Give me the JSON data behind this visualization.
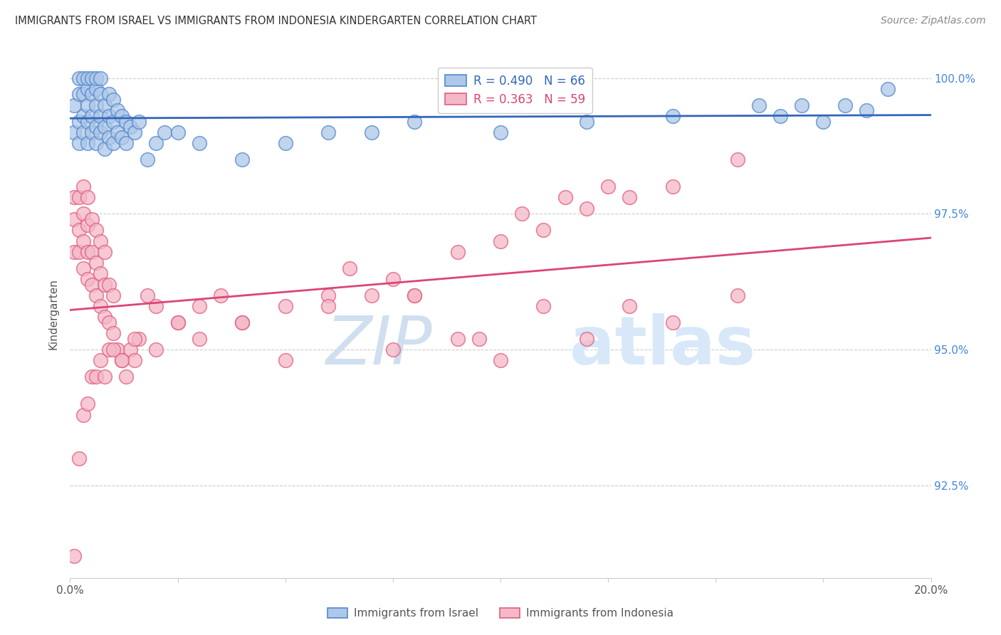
{
  "title": "IMMIGRANTS FROM ISRAEL VS IMMIGRANTS FROM INDONESIA KINDERGARTEN CORRELATION CHART",
  "source": "Source: ZipAtlas.com",
  "ylabel": "Kindergarten",
  "y_tick_labels": [
    "92.5%",
    "95.0%",
    "97.5%",
    "100.0%"
  ],
  "y_tick_values": [
    0.925,
    0.95,
    0.975,
    1.0
  ],
  "xlim": [
    0.0,
    0.2
  ],
  "ylim": [
    0.908,
    1.005
  ],
  "israel_color": "#adc8e8",
  "indonesia_color": "#f4b8c8",
  "israel_edge_color": "#5588cc",
  "indonesia_edge_color": "#e06080",
  "israel_line_color": "#3366bb",
  "indonesia_line_color": "#dd4477",
  "background_color": "#ffffff",
  "israel_legend": "R = 0.490   N = 66",
  "indonesia_legend": "R = 0.363   N = 59",
  "watermark_zip": "ZIP",
  "watermark_atlas": "atlas",
  "israel_x": [
    0.001,
    0.001,
    0.002,
    0.002,
    0.002,
    0.002,
    0.003,
    0.003,
    0.003,
    0.003,
    0.004,
    0.004,
    0.004,
    0.004,
    0.004,
    0.005,
    0.005,
    0.005,
    0.005,
    0.006,
    0.006,
    0.006,
    0.006,
    0.006,
    0.007,
    0.007,
    0.007,
    0.007,
    0.008,
    0.008,
    0.008,
    0.009,
    0.009,
    0.009,
    0.01,
    0.01,
    0.01,
    0.011,
    0.011,
    0.012,
    0.012,
    0.013,
    0.013,
    0.014,
    0.015,
    0.016,
    0.018,
    0.02,
    0.022,
    0.025,
    0.03,
    0.04,
    0.05,
    0.06,
    0.07,
    0.08,
    0.1,
    0.12,
    0.14,
    0.16,
    0.165,
    0.17,
    0.175,
    0.18,
    0.185,
    0.19
  ],
  "israel_y": [
    0.99,
    0.995,
    0.988,
    0.992,
    0.997,
    1.0,
    0.99,
    0.993,
    0.997,
    1.0,
    0.988,
    0.992,
    0.995,
    0.998,
    1.0,
    0.99,
    0.993,
    0.997,
    1.0,
    0.988,
    0.991,
    0.995,
    0.998,
    1.0,
    0.99,
    0.993,
    0.997,
    1.0,
    0.987,
    0.991,
    0.995,
    0.989,
    0.993,
    0.997,
    0.988,
    0.992,
    0.996,
    0.99,
    0.994,
    0.989,
    0.993,
    0.988,
    0.992,
    0.991,
    0.99,
    0.992,
    0.985,
    0.988,
    0.99,
    0.99,
    0.988,
    0.985,
    0.988,
    0.99,
    0.99,
    0.992,
    0.99,
    0.992,
    0.993,
    0.995,
    0.993,
    0.995,
    0.992,
    0.995,
    0.994,
    0.998
  ],
  "indonesia_x": [
    0.001,
    0.001,
    0.001,
    0.002,
    0.002,
    0.002,
    0.003,
    0.003,
    0.003,
    0.003,
    0.004,
    0.004,
    0.004,
    0.004,
    0.005,
    0.005,
    0.005,
    0.006,
    0.006,
    0.006,
    0.007,
    0.007,
    0.007,
    0.008,
    0.008,
    0.008,
    0.009,
    0.009,
    0.01,
    0.01,
    0.011,
    0.012,
    0.013,
    0.014,
    0.015,
    0.016,
    0.018,
    0.02,
    0.025,
    0.03,
    0.035,
    0.04,
    0.05,
    0.06,
    0.065,
    0.07,
    0.075,
    0.08,
    0.09,
    0.095,
    0.1,
    0.105,
    0.11,
    0.115,
    0.12,
    0.125,
    0.13,
    0.14,
    0.155
  ],
  "indonesia_y": [
    0.968,
    0.974,
    0.978,
    0.968,
    0.972,
    0.978,
    0.965,
    0.97,
    0.975,
    0.98,
    0.963,
    0.968,
    0.973,
    0.978,
    0.962,
    0.968,
    0.974,
    0.96,
    0.966,
    0.972,
    0.958,
    0.964,
    0.97,
    0.956,
    0.962,
    0.968,
    0.955,
    0.962,
    0.953,
    0.96,
    0.95,
    0.948,
    0.945,
    0.95,
    0.948,
    0.952,
    0.96,
    0.958,
    0.955,
    0.952,
    0.96,
    0.955,
    0.958,
    0.96,
    0.965,
    0.96,
    0.963,
    0.96,
    0.968,
    0.952,
    0.97,
    0.975,
    0.972,
    0.978,
    0.976,
    0.98,
    0.978,
    0.98,
    0.985
  ],
  "indonesia_low_x": [
    0.001,
    0.002,
    0.003,
    0.004,
    0.005,
    0.006,
    0.007,
    0.008,
    0.009,
    0.01,
    0.012,
    0.015,
    0.02,
    0.025,
    0.03,
    0.04,
    0.05,
    0.06,
    0.075,
    0.08,
    0.09,
    0.1,
    0.11,
    0.12,
    0.13,
    0.14,
    0.155
  ],
  "indonesia_low_y": [
    0.912,
    0.93,
    0.938,
    0.94,
    0.945,
    0.945,
    0.948,
    0.945,
    0.95,
    0.95,
    0.948,
    0.952,
    0.95,
    0.955,
    0.958,
    0.955,
    0.948,
    0.958,
    0.95,
    0.96,
    0.952,
    0.948,
    0.958,
    0.952,
    0.958,
    0.955,
    0.96
  ]
}
